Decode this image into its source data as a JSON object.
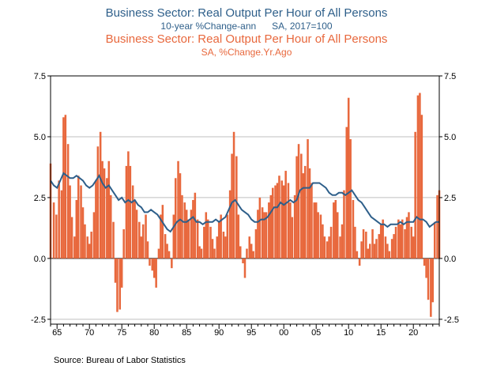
{
  "titles": {
    "line_title": "Business Sector: Real Output Per Hour of All Persons",
    "line_subtitle": "10-year %Change-ann      SA, 2017=100",
    "bar_title": "Business Sector: Real Output Per Hour of All Persons",
    "bar_subtitle": "SA, %Change.Yr.Ago"
  },
  "source": "Source:  Bureau of Labor Statistics",
  "colors": {
    "bars": "#e8683d",
    "line": "#2e5f8a",
    "grid": "#bfbfbf"
  },
  "chart_data": {
    "type": "bar",
    "xlim": [
      1964,
      2024
    ],
    "ylim": [
      -2.7,
      7.5
    ],
    "y_ticks": [
      7.5,
      5.0,
      2.5,
      0.0,
      -2.5
    ],
    "y_tick_labels_left": [
      "7.5",
      "5.0",
      "2.5",
      "0.0",
      "-2.5"
    ],
    "y_tick_labels_right": [
      "7.5",
      "5.0",
      "2.5",
      "0.0",
      "-2.5"
    ],
    "x_tick_labels": [
      "65",
      "70",
      "75",
      "80",
      "85",
      "90",
      "95",
      "00",
      "05",
      "10",
      "15",
      "20"
    ],
    "x_tick_years": [
      1965,
      1970,
      1975,
      1980,
      1985,
      1990,
      1995,
      2000,
      2005,
      2010,
      2015,
      2020
    ],
    "grid": true,
    "series": [
      {
        "name": "Business Sector: Real Output Per Hour of All Persons — SA, %Change.Yr.Ago",
        "type": "bar",
        "points": [
          [
            1964.0,
            3.9
          ],
          [
            1964.5,
            2.3
          ],
          [
            1964.9,
            1.8
          ],
          [
            1965.3,
            3.2
          ],
          [
            1965.7,
            2.8
          ],
          [
            1966.0,
            5.8
          ],
          [
            1966.3,
            5.9
          ],
          [
            1966.7,
            4.7
          ],
          [
            1967.0,
            3.0
          ],
          [
            1967.3,
            1.7
          ],
          [
            1967.7,
            0.9
          ],
          [
            1968.0,
            2.4
          ],
          [
            1968.3,
            3.4
          ],
          [
            1968.7,
            3.0
          ],
          [
            1969.0,
            2.1
          ],
          [
            1969.3,
            1.4
          ],
          [
            1969.7,
            0.9
          ],
          [
            1970.0,
            0.6
          ],
          [
            1970.3,
            1.1
          ],
          [
            1970.7,
            1.9
          ],
          [
            1971.0,
            3.2
          ],
          [
            1971.3,
            4.6
          ],
          [
            1971.7,
            5.2
          ],
          [
            1972.0,
            4.0
          ],
          [
            1972.3,
            3.7
          ],
          [
            1972.7,
            3.3
          ],
          [
            1973.0,
            4.0
          ],
          [
            1973.3,
            2.6
          ],
          [
            1973.7,
            1.5
          ],
          [
            1974.0,
            -1.0
          ],
          [
            1974.3,
            -2.2
          ],
          [
            1974.7,
            -2.1
          ],
          [
            1975.0,
            -1.2
          ],
          [
            1975.3,
            1.2
          ],
          [
            1975.7,
            3.8
          ],
          [
            1976.0,
            4.4
          ],
          [
            1976.3,
            3.8
          ],
          [
            1976.7,
            3.0
          ],
          [
            1977.0,
            2.4
          ],
          [
            1977.3,
            2.0
          ],
          [
            1977.7,
            1.5
          ],
          [
            1978.0,
            0.9
          ],
          [
            1978.3,
            1.4
          ],
          [
            1978.7,
            1.8
          ],
          [
            1979.0,
            0.7
          ],
          [
            1979.3,
            -0.3
          ],
          [
            1979.7,
            -0.5
          ],
          [
            1980.0,
            -0.8
          ],
          [
            1980.3,
            -1.2
          ],
          [
            1980.7,
            0.4
          ],
          [
            1981.0,
            1.8
          ],
          [
            1981.3,
            2.2
          ],
          [
            1981.7,
            1.0
          ],
          [
            1982.0,
            0.6
          ],
          [
            1982.3,
            0.3
          ],
          [
            1982.7,
            -0.4
          ],
          [
            1983.0,
            1.8
          ],
          [
            1983.3,
            3.3
          ],
          [
            1983.7,
            4.0
          ],
          [
            1984.0,
            3.5
          ],
          [
            1984.3,
            2.6
          ],
          [
            1984.7,
            2.3
          ],
          [
            1985.0,
            2.0
          ],
          [
            1985.3,
            1.6
          ],
          [
            1985.7,
            2.0
          ],
          [
            1986.0,
            2.4
          ],
          [
            1986.3,
            2.7
          ],
          [
            1986.7,
            1.6
          ],
          [
            1987.0,
            0.5
          ],
          [
            1987.3,
            0.4
          ],
          [
            1987.7,
            1.3
          ],
          [
            1988.0,
            1.9
          ],
          [
            1988.3,
            1.6
          ],
          [
            1988.7,
            1.3
          ],
          [
            1989.0,
            0.8
          ],
          [
            1989.3,
            0.4
          ],
          [
            1989.7,
            0.9
          ],
          [
            1990.0,
            1.5
          ],
          [
            1990.3,
            1.8
          ],
          [
            1990.7,
            1.1
          ],
          [
            1991.0,
            0.9
          ],
          [
            1991.3,
            1.8
          ],
          [
            1991.7,
            2.8
          ],
          [
            1992.0,
            4.3
          ],
          [
            1992.3,
            5.2
          ],
          [
            1992.7,
            4.2
          ],
          [
            1993.0,
            1.8
          ],
          [
            1993.3,
            0.5
          ],
          [
            1993.7,
            -0.2
          ],
          [
            1994.0,
            -0.8
          ],
          [
            1994.3,
            0.4
          ],
          [
            1994.7,
            0.9
          ],
          [
            1995.0,
            0.6
          ],
          [
            1995.3,
            0.3
          ],
          [
            1995.7,
            1.2
          ],
          [
            1996.0,
            2.0
          ],
          [
            1996.3,
            2.5
          ],
          [
            1996.7,
            2.1
          ],
          [
            1997.0,
            1.9
          ],
          [
            1997.3,
            1.9
          ],
          [
            1997.7,
            2.3
          ],
          [
            1998.0,
            2.6
          ],
          [
            1998.3,
            2.9
          ],
          [
            1998.7,
            3.0
          ],
          [
            1999.0,
            3.1
          ],
          [
            1999.3,
            3.4
          ],
          [
            1999.7,
            3.2
          ],
          [
            2000.0,
            3.0
          ],
          [
            2000.3,
            3.6
          ],
          [
            2000.7,
            3.1
          ],
          [
            2001.0,
            2.3
          ],
          [
            2001.3,
            1.7
          ],
          [
            2001.7,
            2.6
          ],
          [
            2002.0,
            4.2
          ],
          [
            2002.3,
            4.7
          ],
          [
            2002.7,
            4.3
          ],
          [
            2003.0,
            3.5
          ],
          [
            2003.3,
            3.8
          ],
          [
            2003.7,
            4.9
          ],
          [
            2004.0,
            3.7
          ],
          [
            2004.3,
            3.1
          ],
          [
            2004.7,
            2.3
          ],
          [
            2005.0,
            2.3
          ],
          [
            2005.3,
            1.9
          ],
          [
            2005.7,
            1.8
          ],
          [
            2006.0,
            1.4
          ],
          [
            2006.3,
            0.9
          ],
          [
            2006.7,
            0.7
          ],
          [
            2007.0,
            0.9
          ],
          [
            2007.3,
            1.3
          ],
          [
            2007.7,
            2.3
          ],
          [
            2008.0,
            2.4
          ],
          [
            2008.3,
            1.9
          ],
          [
            2008.7,
            0.9
          ],
          [
            2009.0,
            1.4
          ],
          [
            2009.3,
            2.8
          ],
          [
            2009.7,
            5.4
          ],
          [
            2010.0,
            6.6
          ],
          [
            2010.3,
            4.9
          ],
          [
            2010.7,
            2.4
          ],
          [
            2011.0,
            1.3
          ],
          [
            2011.3,
            0.3
          ],
          [
            2011.7,
            -0.3
          ],
          [
            2012.0,
            0.7
          ],
          [
            2012.3,
            1.2
          ],
          [
            2012.7,
            1.1
          ],
          [
            2013.0,
            0.4
          ],
          [
            2013.3,
            0.6
          ],
          [
            2013.7,
            1.2
          ],
          [
            2014.0,
            0.6
          ],
          [
            2014.3,
            0.8
          ],
          [
            2014.7,
            1.0
          ],
          [
            2015.0,
            1.4
          ],
          [
            2015.3,
            1.6
          ],
          [
            2015.7,
            0.9
          ],
          [
            2016.0,
            0.6
          ],
          [
            2016.3,
            0.3
          ],
          [
            2016.7,
            0.8
          ],
          [
            2017.0,
            1.0
          ],
          [
            2017.3,
            1.3
          ],
          [
            2017.7,
            1.6
          ],
          [
            2018.0,
            1.4
          ],
          [
            2018.3,
            1.6
          ],
          [
            2018.7,
            1.2
          ],
          [
            2019.0,
            1.7
          ],
          [
            2019.3,
            1.9
          ],
          [
            2019.7,
            1.3
          ],
          [
            2020.0,
            0.9
          ],
          [
            2020.3,
            5.2
          ],
          [
            2020.7,
            6.7
          ],
          [
            2021.0,
            6.8
          ],
          [
            2021.3,
            5.9
          ],
          [
            2021.7,
            -0.3
          ],
          [
            2022.0,
            -0.8
          ],
          [
            2022.3,
            -1.7
          ],
          [
            2022.7,
            -2.4
          ],
          [
            2023.0,
            -1.8
          ],
          [
            2023.3,
            1.5
          ],
          [
            2023.7,
            2.6
          ],
          [
            2024.0,
            2.8
          ]
        ]
      },
      {
        "name": "Business Sector: Real Output Per Hour of All Persons — 10-year %Change-ann, SA, 2017=100",
        "type": "line",
        "points": [
          [
            1964.0,
            3.2
          ],
          [
            1964.5,
            3.0
          ],
          [
            1965.0,
            2.9
          ],
          [
            1965.5,
            3.2
          ],
          [
            1966.0,
            3.5
          ],
          [
            1966.5,
            3.4
          ],
          [
            1967.0,
            3.3
          ],
          [
            1967.5,
            3.3
          ],
          [
            1968.0,
            3.4
          ],
          [
            1968.5,
            3.3
          ],
          [
            1969.0,
            3.2
          ],
          [
            1969.5,
            3.0
          ],
          [
            1970.0,
            2.9
          ],
          [
            1970.5,
            3.0
          ],
          [
            1971.0,
            3.2
          ],
          [
            1971.5,
            3.4
          ],
          [
            1972.0,
            3.1
          ],
          [
            1972.5,
            2.9
          ],
          [
            1973.0,
            3.0
          ],
          [
            1973.5,
            2.8
          ],
          [
            1974.0,
            2.6
          ],
          [
            1974.5,
            2.4
          ],
          [
            1975.0,
            2.5
          ],
          [
            1975.5,
            2.3
          ],
          [
            1976.0,
            2.4
          ],
          [
            1976.5,
            2.3
          ],
          [
            1977.0,
            2.4
          ],
          [
            1977.5,
            2.2
          ],
          [
            1978.0,
            2.1
          ],
          [
            1978.5,
            1.9
          ],
          [
            1979.0,
            1.9
          ],
          [
            1979.5,
            2.0
          ],
          [
            1980.0,
            1.9
          ],
          [
            1980.5,
            1.8
          ],
          [
            1981.0,
            1.6
          ],
          [
            1981.5,
            1.4
          ],
          [
            1982.0,
            1.2
          ],
          [
            1982.5,
            1.1
          ],
          [
            1983.0,
            1.3
          ],
          [
            1983.5,
            1.5
          ],
          [
            1984.0,
            1.6
          ],
          [
            1984.5,
            1.5
          ],
          [
            1985.0,
            1.5
          ],
          [
            1985.5,
            1.6
          ],
          [
            1986.0,
            1.7
          ],
          [
            1986.5,
            1.5
          ],
          [
            1987.0,
            1.5
          ],
          [
            1987.5,
            1.4
          ],
          [
            1988.0,
            1.5
          ],
          [
            1988.5,
            1.5
          ],
          [
            1989.0,
            1.5
          ],
          [
            1989.5,
            1.6
          ],
          [
            1990.0,
            1.5
          ],
          [
            1990.5,
            1.6
          ],
          [
            1991.0,
            1.7
          ],
          [
            1991.5,
            2.0
          ],
          [
            1992.0,
            2.3
          ],
          [
            1992.5,
            2.4
          ],
          [
            1993.0,
            2.2
          ],
          [
            1993.5,
            2.0
          ],
          [
            1994.0,
            1.9
          ],
          [
            1994.5,
            1.8
          ],
          [
            1995.0,
            1.6
          ],
          [
            1995.5,
            1.5
          ],
          [
            1996.0,
            1.5
          ],
          [
            1996.5,
            1.6
          ],
          [
            1997.0,
            1.6
          ],
          [
            1997.5,
            1.7
          ],
          [
            1998.0,
            1.9
          ],
          [
            1998.5,
            2.1
          ],
          [
            1999.0,
            2.1
          ],
          [
            1999.5,
            2.3
          ],
          [
            2000.0,
            2.2
          ],
          [
            2000.5,
            2.3
          ],
          [
            2001.0,
            2.4
          ],
          [
            2001.5,
            2.3
          ],
          [
            2002.0,
            2.4
          ],
          [
            2002.5,
            2.8
          ],
          [
            2003.0,
            2.9
          ],
          [
            2003.5,
            2.9
          ],
          [
            2004.0,
            2.9
          ],
          [
            2004.5,
            3.1
          ],
          [
            2005.0,
            3.1
          ],
          [
            2005.5,
            3.1
          ],
          [
            2006.0,
            3.0
          ],
          [
            2006.5,
            2.9
          ],
          [
            2007.0,
            2.7
          ],
          [
            2007.5,
            2.6
          ],
          [
            2008.0,
            2.6
          ],
          [
            2008.5,
            2.7
          ],
          [
            2009.0,
            2.7
          ],
          [
            2009.5,
            2.6
          ],
          [
            2010.0,
            2.7
          ],
          [
            2010.5,
            2.8
          ],
          [
            2011.0,
            2.6
          ],
          [
            2011.5,
            2.4
          ],
          [
            2012.0,
            2.3
          ],
          [
            2012.5,
            2.1
          ],
          [
            2013.0,
            1.9
          ],
          [
            2013.5,
            1.7
          ],
          [
            2014.0,
            1.6
          ],
          [
            2014.5,
            1.5
          ],
          [
            2015.0,
            1.4
          ],
          [
            2015.5,
            1.4
          ],
          [
            2016.0,
            1.3
          ],
          [
            2016.5,
            1.4
          ],
          [
            2017.0,
            1.4
          ],
          [
            2017.5,
            1.4
          ],
          [
            2018.0,
            1.5
          ],
          [
            2018.5,
            1.4
          ],
          [
            2019.0,
            1.5
          ],
          [
            2019.5,
            1.5
          ],
          [
            2020.0,
            1.5
          ],
          [
            2020.5,
            1.7
          ],
          [
            2021.0,
            1.6
          ],
          [
            2021.5,
            1.6
          ],
          [
            2022.0,
            1.5
          ],
          [
            2022.5,
            1.3
          ],
          [
            2023.0,
            1.4
          ],
          [
            2023.5,
            1.5
          ],
          [
            2024.0,
            1.5
          ]
        ]
      }
    ]
  }
}
